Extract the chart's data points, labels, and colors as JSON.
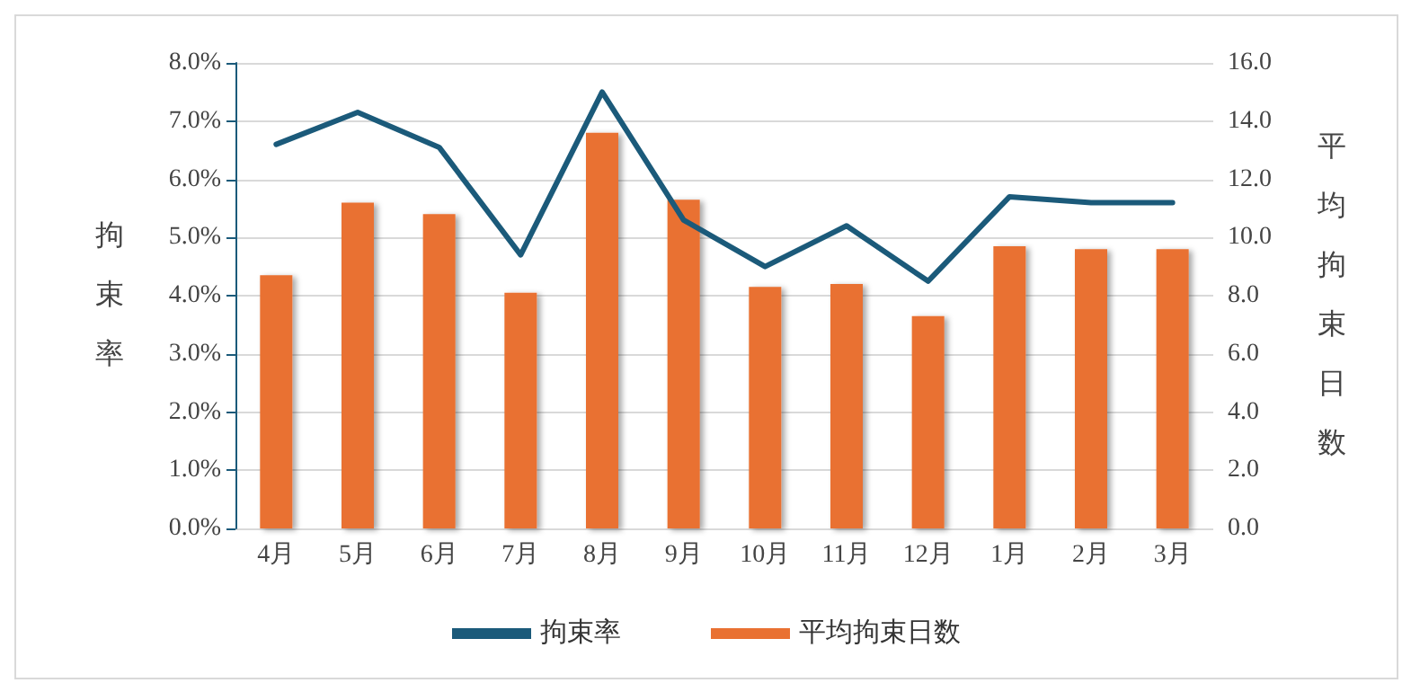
{
  "chart_data": {
    "type": "bar",
    "ylabel": "拘束率",
    "y2label": "平均拘束日数",
    "categories": [
      "4月",
      "5月",
      "6月",
      "7月",
      "8月",
      "9月",
      "10月",
      "11月",
      "12月",
      "1月",
      "2月",
      "3月"
    ],
    "series": [
      {
        "name": "拘束率",
        "type": "line",
        "color": "#1b5a7a",
        "values": [
          6.6,
          7.15,
          6.55,
          4.7,
          7.5,
          5.3,
          4.5,
          5.2,
          4.25,
          5.7,
          5.6,
          5.6
        ]
      },
      {
        "name": "平均拘束日数",
        "axis": "y2",
        "color": "#e97132",
        "values": [
          8.7,
          11.2,
          10.8,
          8.1,
          13.6,
          11.3,
          8.3,
          8.4,
          7.3,
          9.7,
          9.6,
          9.6
        ]
      }
    ],
    "ylim": [
      0,
      8
    ],
    "yticks": [
      {
        "value": 0,
        "label": "0.0%"
      },
      {
        "value": 1,
        "label": "1.0%"
      },
      {
        "value": 2,
        "label": "2.0%"
      },
      {
        "value": 3,
        "label": "3.0%"
      },
      {
        "value": 4,
        "label": "4.0%"
      },
      {
        "value": 5,
        "label": "5.0%"
      },
      {
        "value": 6,
        "label": "6.0%"
      },
      {
        "value": 7,
        "label": "7.0%"
      },
      {
        "value": 8,
        "label": "8.0%"
      }
    ],
    "y2lim": [
      0,
      16
    ],
    "y2ticks": [
      {
        "value": 0,
        "label": "0.0"
      },
      {
        "value": 2,
        "label": "2.0"
      },
      {
        "value": 4,
        "label": "4.0"
      },
      {
        "value": 6,
        "label": "6.0"
      },
      {
        "value": 8,
        "label": "8.0"
      },
      {
        "value": 10,
        "label": "10.0"
      },
      {
        "value": 12,
        "label": "12.0"
      },
      {
        "value": 14,
        "label": "14.0"
      },
      {
        "value": 16,
        "label": "16.0"
      }
    ],
    "grid": "y",
    "legend": "bottom",
    "marker": "none"
  }
}
